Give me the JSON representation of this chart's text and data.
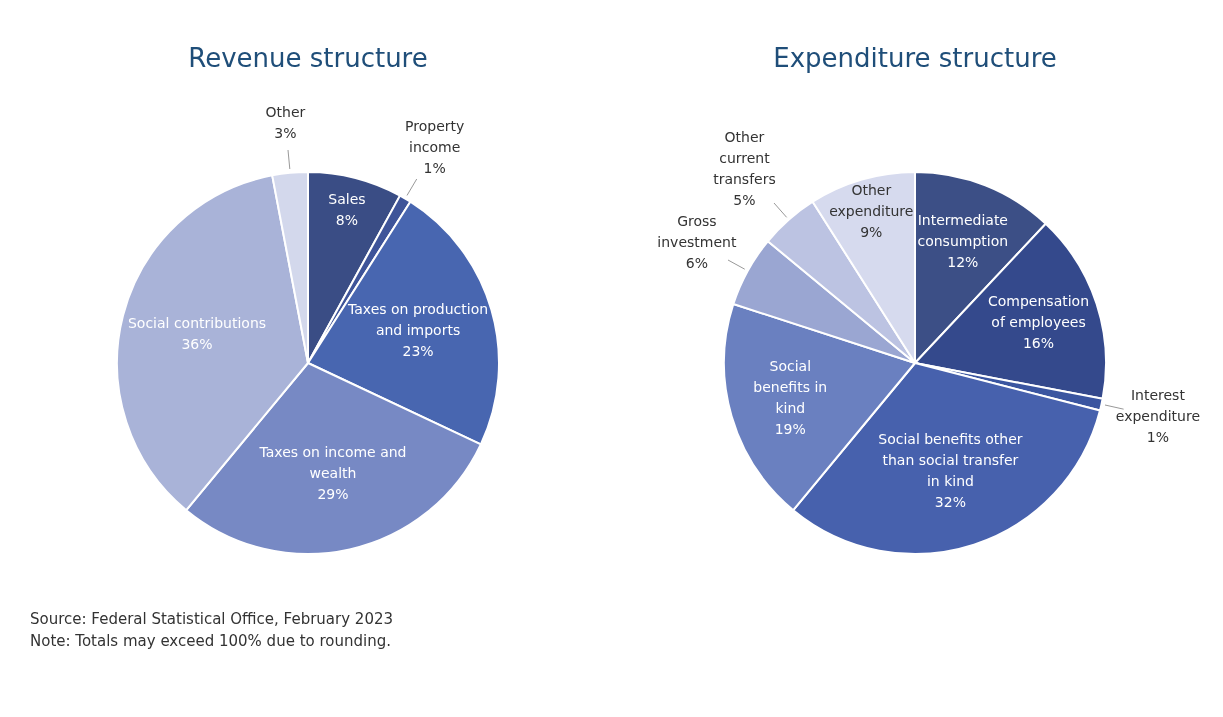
{
  "chart_data": [
    {
      "type": "pie",
      "title": "Revenue structure",
      "categories": [
        "Sales",
        "Property income",
        "Taxes on production and imports",
        "Taxes on income and wealth",
        "Social contributions",
        "Other"
      ],
      "values": [
        8,
        1,
        23,
        29,
        36,
        3
      ],
      "value_labels": [
        "8%",
        "1%",
        "23%",
        "29%",
        "36%",
        "3%"
      ],
      "colors": [
        "#3a4d85",
        "#3e5499",
        "#4866b0",
        "#7789c4",
        "#a9b3d8",
        "#d3d8ec"
      ],
      "annotations": [
        "Source: Federal Statistical Office, February 2023",
        "Note: Totals may exceed 100% due to rounding."
      ]
    },
    {
      "type": "pie",
      "title": "Expenditure structure",
      "categories": [
        "Intermediate consumption",
        "Compensation of employees",
        "Interest expenditure",
        "Social benefits other than social transfer in kind",
        "Social benefits in kind",
        "Gross investment",
        "Other current transfers",
        "Other expenditure"
      ],
      "values": [
        12,
        16,
        1,
        32,
        19,
        6,
        5,
        9
      ],
      "value_labels": [
        "12%",
        "16%",
        "1%",
        "32%",
        "19%",
        "6%",
        "5%",
        "9%"
      ],
      "colors": [
        "#3c4f86",
        "#34498c",
        "#3a55a0",
        "#4761ad",
        "#6a80c0",
        "#9aa6d2",
        "#bcc3e2",
        "#d6daee"
      ]
    }
  ]
}
